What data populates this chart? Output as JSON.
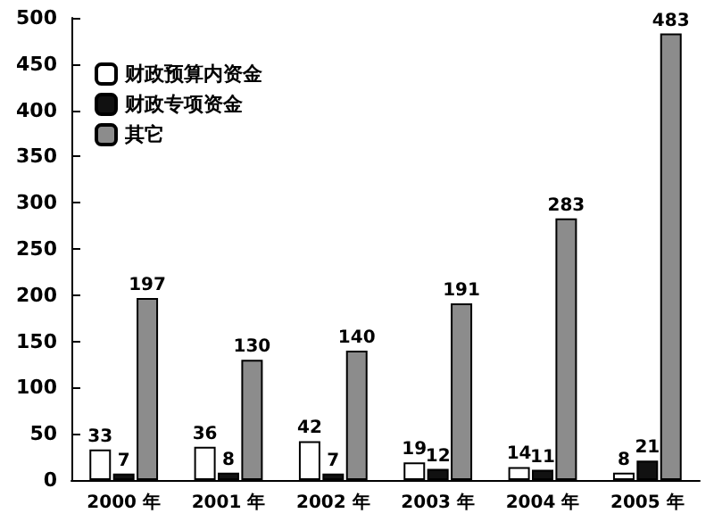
{
  "chart_data": {
    "type": "bar",
    "categories": [
      "2000 年",
      "2001 年",
      "2002 年",
      "2003 年",
      "2004 年",
      "2005 年"
    ],
    "series": [
      {
        "name": "财政预算内资金",
        "color": "#ffffff",
        "values": [
          33,
          36,
          42,
          19,
          14,
          8
        ]
      },
      {
        "name": "财政专项资金",
        "color": "#111111",
        "values": [
          7,
          8,
          7,
          12,
          11,
          21
        ]
      },
      {
        "name": "其它",
        "color": "#8c8c8c",
        "values": [
          197,
          130,
          140,
          191,
          283,
          483
        ]
      }
    ],
    "ylim": [
      0,
      500
    ],
    "yticks": [
      0,
      50,
      100,
      150,
      200,
      250,
      300,
      350,
      400,
      450,
      500
    ],
    "data_labels": true,
    "legend": "top left",
    "grid": false
  }
}
